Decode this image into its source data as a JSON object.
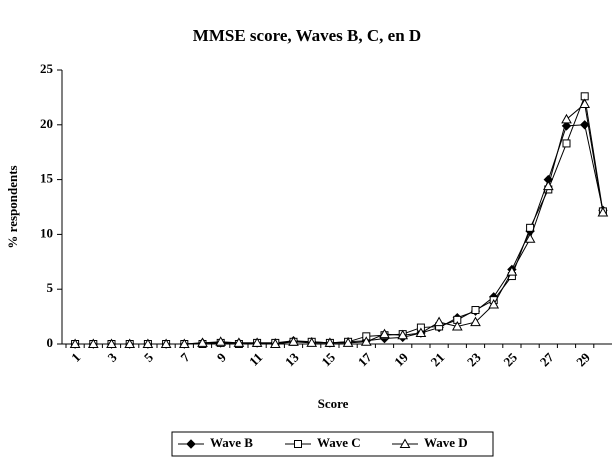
{
  "chart_data": {
    "type": "line",
    "title": "MMSE score, Waves B, C, en D",
    "x_label": "Score",
    "y_label": "% respondents",
    "categories": [
      1,
      null,
      3,
      null,
      5,
      null,
      7,
      null,
      9,
      null,
      11,
      null,
      13,
      null,
      15,
      null,
      17,
      null,
      19,
      null,
      21,
      null,
      23,
      null,
      25,
      null,
      27,
      null,
      29,
      null
    ],
    "series": [
      {
        "name": "Wave B",
        "color": "#000000",
        "marker": "diamond",
        "values": [
          0,
          0,
          0,
          0,
          0,
          0,
          0,
          0.1,
          0.1,
          0.1,
          0.1,
          0.1,
          0.3,
          0.2,
          0.1,
          0.2,
          0.3,
          0.5,
          0.6,
          1.0,
          1.5,
          2.4,
          3.0,
          4.3,
          6.8,
          10.3,
          15.0,
          19.9,
          20.0,
          12.2
        ]
      },
      {
        "name": "Wave C",
        "color": "#000000",
        "marker": "square",
        "values": [
          0,
          0,
          0,
          0,
          0,
          0,
          0,
          0,
          0.1,
          0,
          0.1,
          0.1,
          0.2,
          0.2,
          0.1,
          0.2,
          0.7,
          0.8,
          0.9,
          1.5,
          1.6,
          2.2,
          3.1,
          4.0,
          6.2,
          10.6,
          14.1,
          18.3,
          22.6,
          12.1
        ]
      },
      {
        "name": "Wave D",
        "color": "#000000",
        "marker": "triangle",
        "values": [
          0,
          0,
          0,
          0,
          0,
          0,
          0,
          0.1,
          0.2,
          0.1,
          0.1,
          0,
          0.2,
          0.1,
          0.1,
          0.1,
          0.2,
          0.9,
          0.8,
          1.0,
          2.0,
          1.6,
          2.0,
          3.6,
          6.6,
          9.6,
          14.4,
          20.5,
          21.9,
          12.0
        ]
      }
    ],
    "ylim": [
      0,
      25
    ],
    "yticks": [
      0,
      5,
      10,
      15,
      20,
      25
    ],
    "grid": false,
    "legend": "bottom"
  }
}
